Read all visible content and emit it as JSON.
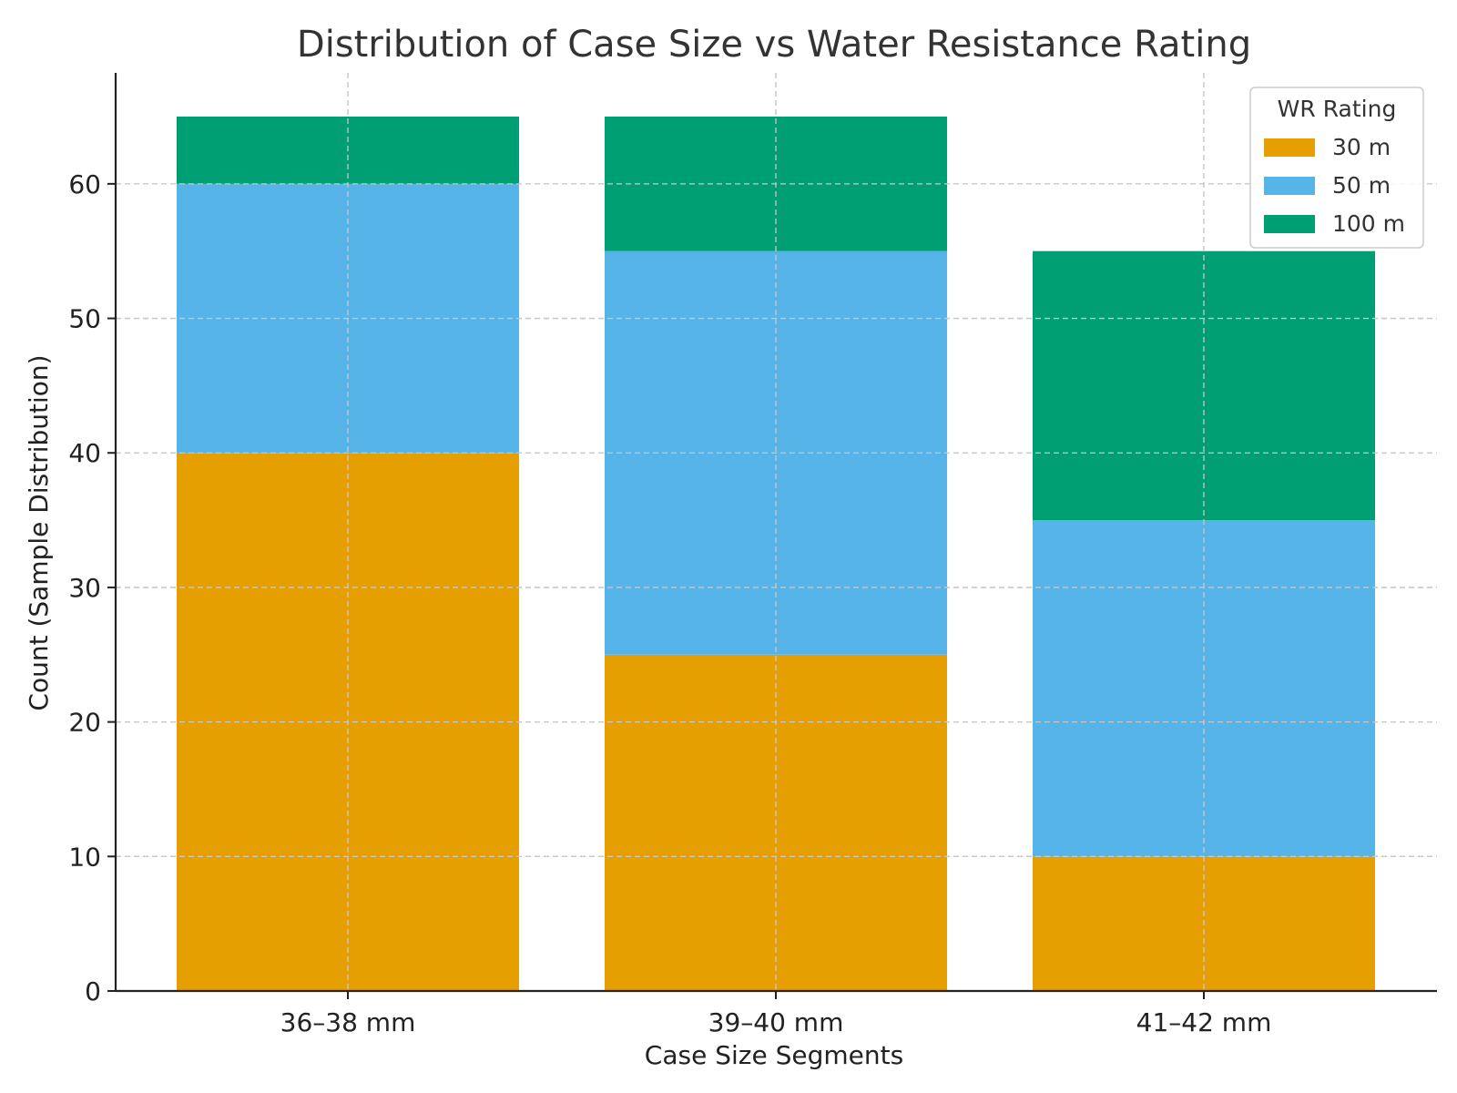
{
  "chart_data": {
    "type": "bar",
    "stacked": true,
    "title": "Distribution of Case Size vs Water Resistance Rating",
    "xlabel": "Case Size Segments",
    "ylabel": "Count (Sample Distribution)",
    "categories": [
      "36–38 mm",
      "39–40 mm",
      "41–42 mm"
    ],
    "series": [
      {
        "name": "30 m",
        "color": "#E69F00",
        "values": [
          40,
          25,
          10
        ]
      },
      {
        "name": "50 m",
        "color": "#56B4E9",
        "values": [
          20,
          30,
          25
        ]
      },
      {
        "name": "100 m",
        "color": "#009E73",
        "values": [
          5,
          10,
          20
        ]
      }
    ],
    "ylim": [
      0,
      68.25
    ],
    "yticks": [
      0,
      10,
      20,
      30,
      40,
      50,
      60
    ],
    "grid": true,
    "legend": {
      "title": "WR Rating",
      "placement": "top-right"
    }
  }
}
